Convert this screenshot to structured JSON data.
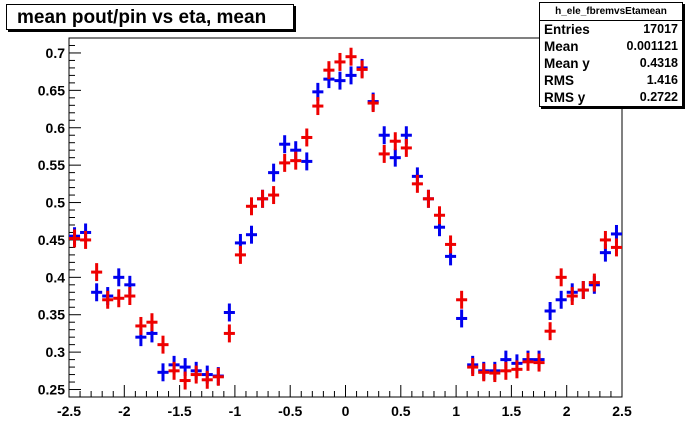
{
  "title": "mean pout/pin vs eta, mean",
  "stats": {
    "name": "h_ele_fbremvsEtamean",
    "rows": [
      {
        "label": "Entries",
        "value": "17017"
      },
      {
        "label": "Mean",
        "value": "0.001121"
      },
      {
        "label": "Mean y",
        "value": "0.4318"
      },
      {
        "label": "RMS",
        "value": "1.416"
      },
      {
        "label": "RMS y",
        "value": "0.2722"
      }
    ]
  },
  "chart_data": {
    "type": "scatter",
    "title": "mean pout/pin vs eta, mean",
    "xlabel": "",
    "ylabel": "",
    "xlim": [
      -2.5,
      2.5
    ],
    "ylim": [
      0.24,
      0.72
    ],
    "xticks": [
      "-2.5",
      "-2",
      "-1.5",
      "-1",
      "-0.5",
      "0",
      "0.5",
      "1",
      "1.5",
      "2",
      "2.5"
    ],
    "yticks": [
      "0.25",
      "0.3",
      "0.35",
      "0.4",
      "0.45",
      "0.5",
      "0.55",
      "0.6",
      "0.65",
      "0.7"
    ],
    "grid": false,
    "bin_width": 0.1,
    "colors": {
      "blue": "#0000ee",
      "red": "#ee0000"
    },
    "series": [
      {
        "color": "blue",
        "x": [
          -2.45,
          -2.35,
          -2.25,
          -2.15,
          -2.05,
          -1.95,
          -1.85,
          -1.75,
          -1.65,
          -1.55,
          -1.45,
          -1.35,
          -1.25,
          -1.15,
          -1.05,
          -0.95,
          -0.85,
          -0.75,
          -0.65,
          -0.55,
          -0.45,
          -0.35,
          -0.25,
          -0.15,
          -0.05,
          0.05,
          0.15,
          0.25,
          0.35,
          0.45,
          0.55,
          0.65,
          0.75,
          0.85,
          0.95,
          1.05,
          1.15,
          1.25,
          1.35,
          1.45,
          1.55,
          1.65,
          1.75,
          1.85,
          1.95,
          2.05,
          2.15,
          2.25,
          2.35,
          2.45
        ],
        "y": [
          0.455,
          0.46,
          0.38,
          0.375,
          0.4,
          0.39,
          0.32,
          0.325,
          0.273,
          0.283,
          0.28,
          0.275,
          0.27,
          0.268,
          0.353,
          0.446,
          0.457,
          0.505,
          0.54,
          0.578,
          0.57,
          0.555,
          0.648,
          0.665,
          0.663,
          0.67,
          0.68,
          0.635,
          0.59,
          0.56,
          0.59,
          0.535,
          0.505,
          0.467,
          0.428,
          0.345,
          0.283,
          0.275,
          0.275,
          0.29,
          0.285,
          0.29,
          0.29,
          0.355,
          0.37,
          0.38,
          0.383,
          0.39,
          0.433,
          0.458
        ],
        "y_err": [
          0.012,
          0.012,
          0.012,
          0.012,
          0.012,
          0.012,
          0.012,
          0.012,
          0.012,
          0.012,
          0.012,
          0.012,
          0.012,
          0.012,
          0.012,
          0.012,
          0.012,
          0.012,
          0.012,
          0.012,
          0.012,
          0.012,
          0.012,
          0.012,
          0.012,
          0.012,
          0.012,
          0.012,
          0.012,
          0.012,
          0.012,
          0.012,
          0.012,
          0.012,
          0.012,
          0.012,
          0.012,
          0.012,
          0.012,
          0.012,
          0.012,
          0.012,
          0.012,
          0.012,
          0.012,
          0.012,
          0.012,
          0.012,
          0.012,
          0.012
        ]
      },
      {
        "color": "red",
        "x": [
          -2.45,
          -2.35,
          -2.25,
          -2.15,
          -2.05,
          -1.95,
          -1.85,
          -1.75,
          -1.65,
          -1.55,
          -1.45,
          -1.35,
          -1.25,
          -1.15,
          -1.05,
          -0.95,
          -0.85,
          -0.75,
          -0.65,
          -0.55,
          -0.45,
          -0.35,
          -0.25,
          -0.15,
          -0.05,
          0.05,
          0.15,
          0.25,
          0.35,
          0.45,
          0.55,
          0.65,
          0.75,
          0.85,
          0.95,
          1.05,
          1.15,
          1.25,
          1.35,
          1.45,
          1.55,
          1.65,
          1.75,
          1.85,
          1.95,
          2.05,
          2.15,
          2.25,
          2.35,
          2.45
        ],
        "y": [
          0.452,
          0.45,
          0.407,
          0.37,
          0.372,
          0.375,
          0.335,
          0.34,
          0.31,
          0.275,
          0.262,
          0.27,
          0.263,
          0.267,
          0.325,
          0.43,
          0.495,
          0.505,
          0.51,
          0.553,
          0.556,
          0.587,
          0.629,
          0.677,
          0.688,
          0.695,
          0.678,
          0.633,
          0.565,
          0.582,
          0.573,
          0.525,
          0.505,
          0.483,
          0.444,
          0.37,
          0.28,
          0.273,
          0.272,
          0.275,
          0.277,
          0.287,
          0.286,
          0.328,
          0.4,
          0.375,
          0.383,
          0.393,
          0.45,
          0.44
        ],
        "y_err": [
          0.012,
          0.012,
          0.012,
          0.012,
          0.012,
          0.012,
          0.012,
          0.012,
          0.012,
          0.012,
          0.012,
          0.012,
          0.012,
          0.012,
          0.012,
          0.012,
          0.012,
          0.012,
          0.012,
          0.012,
          0.012,
          0.012,
          0.012,
          0.012,
          0.012,
          0.012,
          0.012,
          0.012,
          0.012,
          0.012,
          0.012,
          0.012,
          0.012,
          0.012,
          0.012,
          0.012,
          0.012,
          0.012,
          0.012,
          0.012,
          0.012,
          0.012,
          0.012,
          0.012,
          0.012,
          0.012,
          0.012,
          0.012,
          0.012,
          0.012
        ]
      }
    ]
  }
}
